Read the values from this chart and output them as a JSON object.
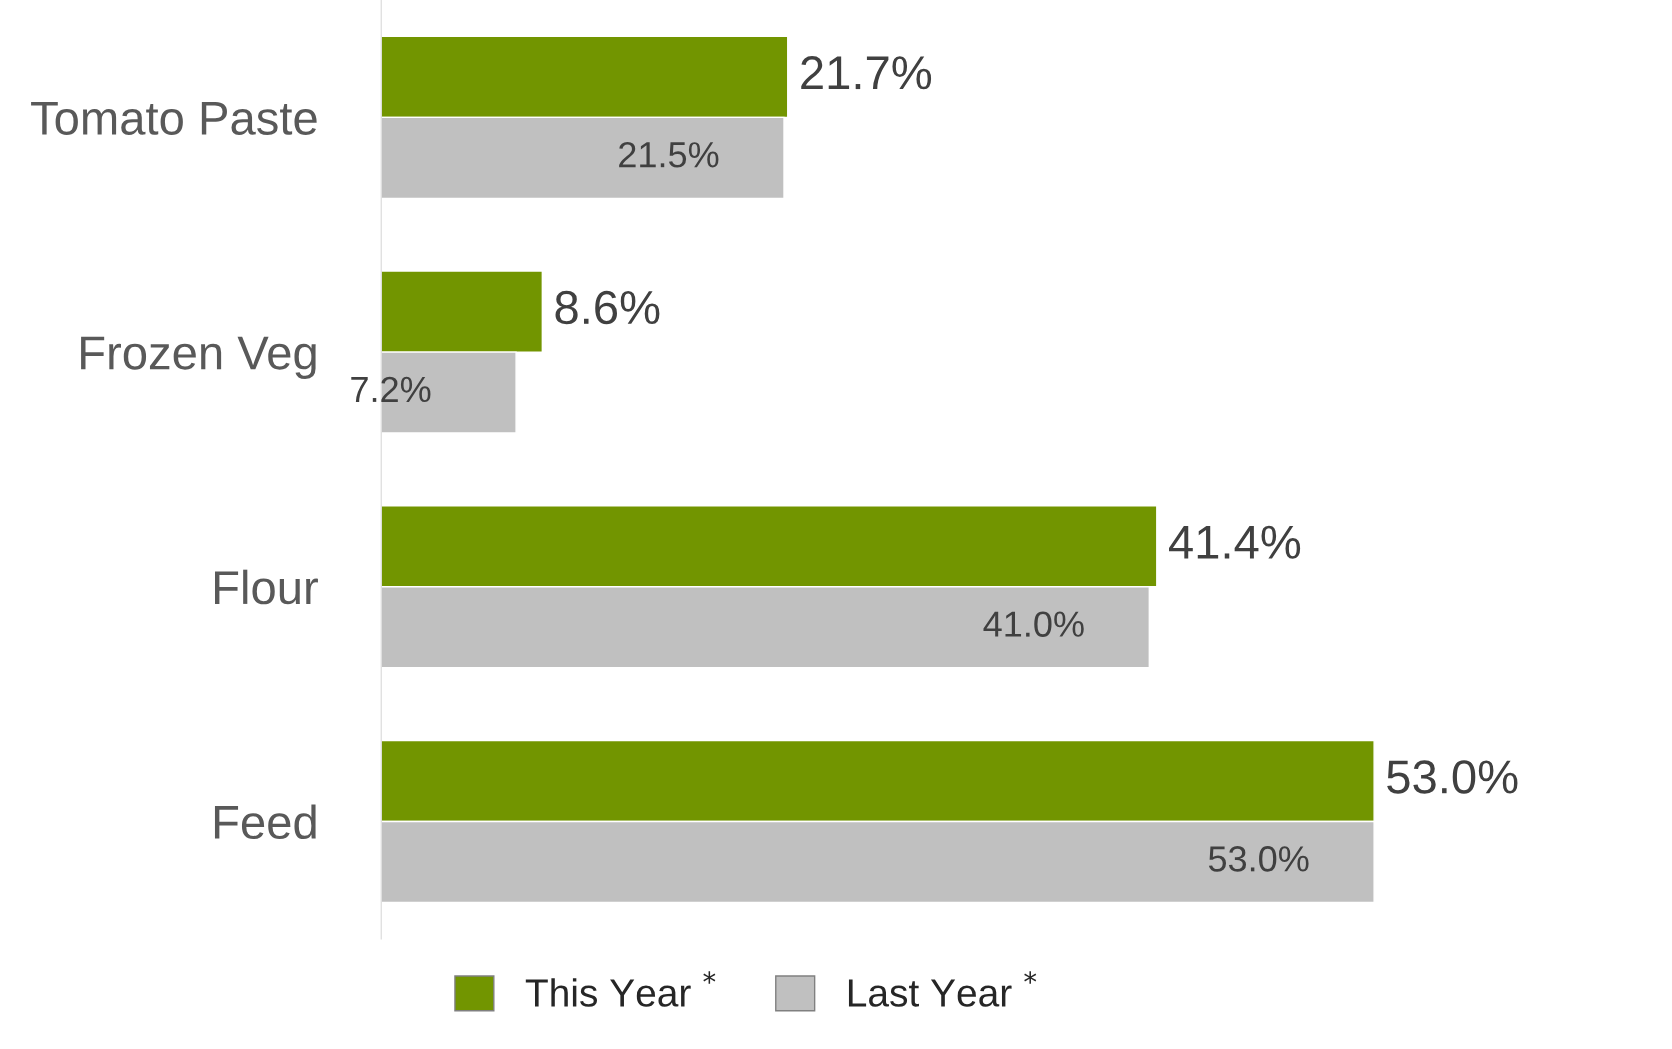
{
  "chart_data": {
    "type": "bar",
    "orientation": "horizontal",
    "categories": [
      "Tomato Paste",
      "Frozen Veg",
      "Flour",
      "Feed"
    ],
    "series": [
      {
        "name": "This Year $^{*}$",
        "color": "#729500",
        "values": [
          21.7,
          8.6,
          41.4,
          53.0
        ],
        "value_labels": [
          "21.7%",
          "8.6%",
          "41.4%",
          "53.0%"
        ]
      },
      {
        "name": "Last Year $^{*}$",
        "color": "#c0c0c0",
        "values": [
          21.5,
          7.2,
          41.0,
          53.0
        ],
        "value_labels": [
          "21.5%",
          "7.2%",
          "41.0%",
          "53.0%"
        ]
      }
    ],
    "legend": "bottom",
    "grid": false
  }
}
